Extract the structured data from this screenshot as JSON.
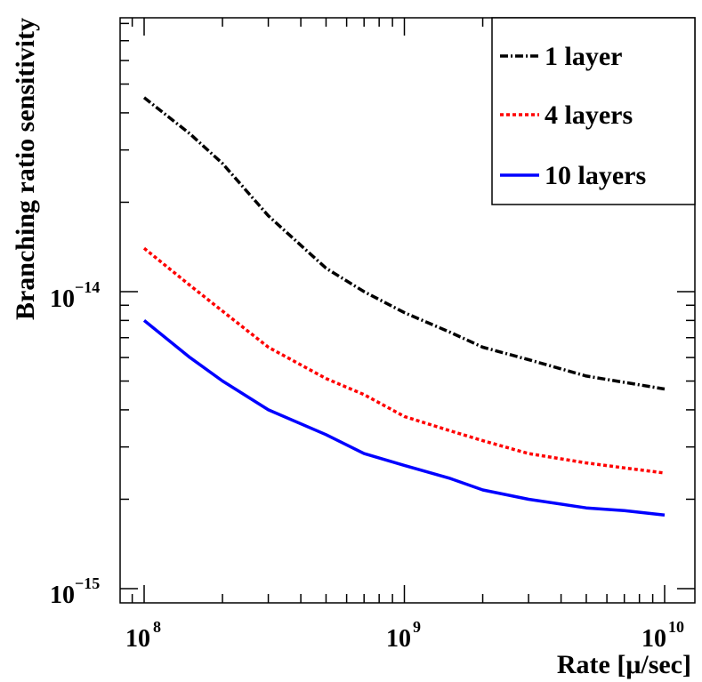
{
  "chart_data": {
    "type": "line",
    "xscale": "log",
    "yscale": "log",
    "xlim": [
      80000000,
      12000000000
    ],
    "ylim": [
      9e-16,
      7e-14
    ],
    "xlabel": "Rate [μ/sec]",
    "ylabel": "Branching ratio sensitivity",
    "x_ticks": [
      {
        "base": "10",
        "exp": "8"
      },
      {
        "base": "10",
        "exp": "9"
      },
      {
        "base": "10",
        "exp": "10"
      }
    ],
    "y_ticks": [
      {
        "base": "10",
        "exp": "−14"
      },
      {
        "base": "10",
        "exp": "−15"
      }
    ],
    "legend_position": "top-right",
    "series": [
      {
        "name": "1 layer",
        "color": "#000000",
        "style": "dashdot",
        "x": [
          100000000,
          150000000,
          200000000,
          300000000,
          500000000,
          700000000,
          1000000000,
          1500000000,
          2000000000,
          3000000000,
          5000000000,
          7000000000,
          10000000000
        ],
        "y": [
          4.5e-14,
          3.4e-14,
          2.7e-14,
          1.8e-14,
          1.2e-14,
          1e-14,
          8.5e-15,
          7.3e-15,
          6.5e-15,
          5.9e-15,
          5.2e-15,
          4.95e-15,
          4.7e-15
        ]
      },
      {
        "name": "4 layers",
        "color": "#ff0000",
        "style": "dotted",
        "x": [
          100000000,
          150000000,
          200000000,
          300000000,
          500000000,
          700000000,
          1000000000,
          1500000000,
          2000000000,
          3000000000,
          5000000000,
          7000000000,
          10000000000
        ],
        "y": [
          1.4e-14,
          1.05e-14,
          8.6e-15,
          6.5e-15,
          5.1e-15,
          4.5e-15,
          3.8e-15,
          3.4e-15,
          3.15e-15,
          2.85e-15,
          2.65e-15,
          2.55e-15,
          2.45e-15
        ]
      },
      {
        "name": "10 layers",
        "color": "#0000ff",
        "style": "solid",
        "x": [
          100000000,
          150000000,
          200000000,
          300000000,
          500000000,
          700000000,
          1000000000,
          1500000000,
          2000000000,
          3000000000,
          5000000000,
          7000000000,
          10000000000
        ],
        "y": [
          8e-15,
          6e-15,
          5e-15,
          4e-15,
          3.3e-15,
          2.85e-15,
          2.6e-15,
          2.35e-15,
          2.15e-15,
          2e-15,
          1.87e-15,
          1.83e-15,
          1.77e-15
        ]
      }
    ]
  }
}
